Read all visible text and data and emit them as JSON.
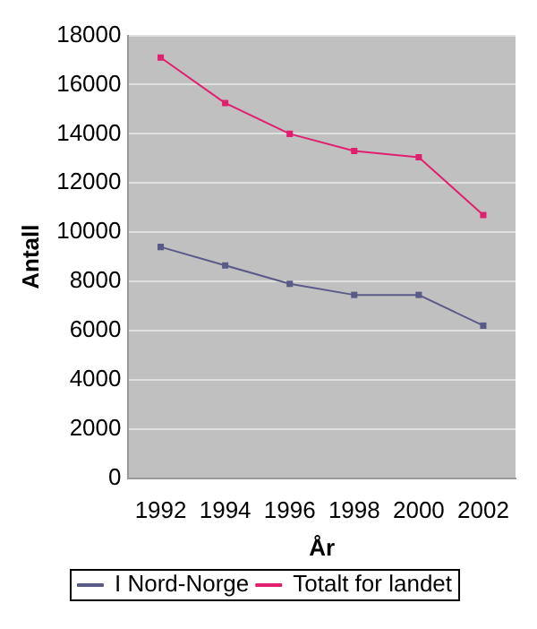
{
  "chart_data": {
    "type": "line",
    "xlabel": "År",
    "ylabel": "Antall",
    "categories": [
      "1992",
      "1994",
      "1996",
      "1998",
      "2000",
      "2002"
    ],
    "series": [
      {
        "name": "I Nord-Norge",
        "color": "#5a5a88",
        "values": [
          9400,
          8650,
          7900,
          7450,
          7450,
          6200
        ]
      },
      {
        "name": "Totalt for landet",
        "color": "#e0206e",
        "values": [
          17100,
          15250,
          14000,
          13300,
          13050,
          10700
        ]
      }
    ],
    "ylim": [
      0,
      18000
    ],
    "yticks": [
      0,
      2000,
      4000,
      6000,
      8000,
      10000,
      12000,
      14000,
      16000,
      18000
    ],
    "grid": "y",
    "legend": "bottom",
    "marker": "square",
    "line_style": "solid"
  }
}
